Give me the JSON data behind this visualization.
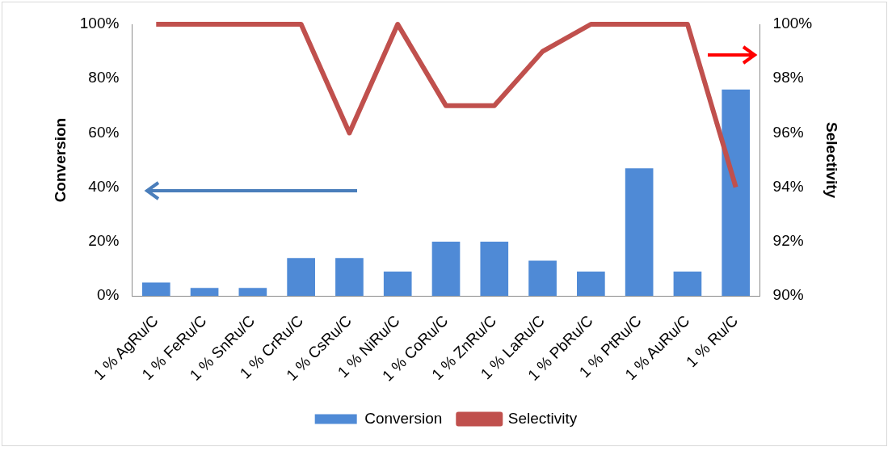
{
  "chart_data": {
    "type": "bar",
    "categories": [
      "1 % AgRu/C",
      "1 % FeRu/C",
      "1 % SnRu/C",
      "1 % CrRu/C",
      "1 % CsRu/C",
      "1 % NiRu/C",
      "1 % CoRu/C",
      "1 % ZnRu/C",
      "1 % LaRu/C",
      "1 % PbRu/C",
      "1 % PtRu/C",
      "1 % AuRu/C",
      "1 % Ru/C"
    ],
    "series": [
      {
        "name": "Conversion",
        "color": "#4f8ad6",
        "values": [
          5,
          3,
          3,
          14,
          14,
          9,
          20,
          20,
          13,
          9,
          47,
          9,
          76
        ]
      },
      {
        "name": "Selectivity",
        "type": "line",
        "axis": "y2",
        "color": "#c0504d",
        "values": [
          100,
          100,
          100,
          100,
          96,
          100,
          97,
          97,
          99,
          100,
          100,
          100,
          94
        ]
      }
    ],
    "ylabel": "Conversion",
    "y2label": "Selectivity",
    "ylim": [
      0,
      100
    ],
    "yticks": [
      {
        "value": 0,
        "label": "0%"
      },
      {
        "value": 20,
        "label": "20%"
      },
      {
        "value": 40,
        "label": "40%"
      },
      {
        "value": 60,
        "label": "60%"
      },
      {
        "value": 80,
        "label": "80%"
      },
      {
        "value": 100,
        "label": "100%"
      }
    ],
    "y2lim": [
      90,
      100
    ],
    "y2ticks": [
      {
        "value": 90,
        "label": "90%"
      },
      {
        "value": 92,
        "label": "92%"
      },
      {
        "value": 94,
        "label": "94%"
      },
      {
        "value": 96,
        "label": "96%"
      },
      {
        "value": 98,
        "label": "98%"
      },
      {
        "value": 100,
        "label": "100%"
      }
    ],
    "grid": false,
    "legend": "bottom",
    "marker": "none",
    "line_style": "solid"
  }
}
